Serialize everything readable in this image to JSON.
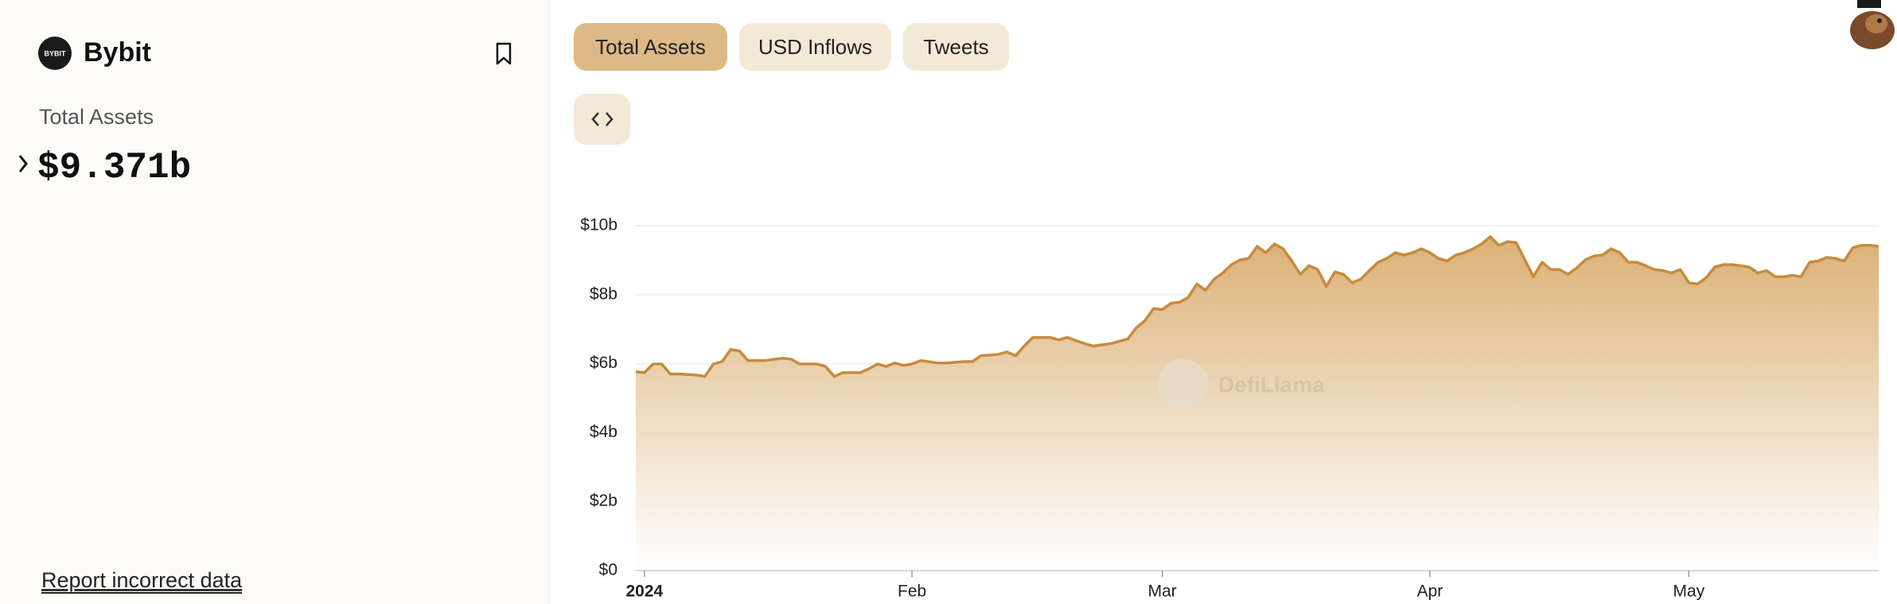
{
  "header": {
    "logo_text": "BYBIT",
    "name": "Bybit",
    "metric": "Total Assets",
    "value": "$9.371b",
    "report": "Report incorrect data"
  },
  "tabs": [
    "Total Assets",
    "USD Inflows",
    "Tweets"
  ],
  "chart_data": {
    "type": "area",
    "color": "#c78b3c",
    "grid": true,
    "watermark": "DefiLlama",
    "x": [
      -1,
      0,
      1,
      2,
      3,
      4,
      6,
      7,
      8,
      9,
      10,
      11,
      12,
      14,
      16,
      17,
      18,
      20,
      21,
      22,
      23,
      25,
      26,
      27,
      28,
      29,
      30,
      31,
      32,
      34,
      35,
      37,
      38,
      39,
      41,
      42,
      43,
      44,
      45,
      47,
      48,
      49,
      51,
      52,
      54,
      55,
      56,
      57,
      58,
      59,
      60,
      61,
      62,
      63,
      64,
      65,
      66,
      67,
      68,
      69,
      70,
      71,
      72,
      73,
      74,
      75,
      76,
      77,
      78,
      79,
      80,
      81,
      82,
      83,
      84,
      85,
      86,
      87,
      88,
      89,
      90,
      91,
      92,
      93,
      94,
      95,
      96,
      97,
      98,
      99,
      100,
      101,
      102,
      103,
      104,
      105,
      106,
      107,
      108,
      109,
      110,
      111,
      112,
      113,
      114,
      115,
      116,
      117,
      118,
      119,
      120,
      121,
      122,
      123,
      124,
      125,
      126,
      127,
      128,
      129,
      130,
      131,
      132,
      133,
      134,
      135,
      136,
      137,
      138,
      139,
      140,
      141,
      142,
      143
    ],
    "values": [
      5.77,
      5.74,
      5.99,
      5.99,
      5.7,
      5.7,
      5.67,
      5.63,
      5.99,
      6.06,
      6.41,
      6.37,
      6.09,
      6.09,
      6.16,
      6.13,
      5.99,
      5.99,
      5.92,
      5.63,
      5.74,
      5.74,
      5.85,
      5.99,
      5.92,
      6.02,
      5.95,
      5.99,
      6.09,
      6.02,
      6.02,
      6.06,
      6.06,
      6.23,
      6.27,
      6.34,
      6.23,
      6.51,
      6.76,
      6.76,
      6.69,
      6.76,
      6.58,
      6.51,
      6.58,
      6.65,
      6.72,
      7.04,
      7.25,
      7.6,
      7.57,
      7.75,
      7.78,
      7.92,
      8.31,
      8.13,
      8.45,
      8.63,
      8.87,
      9.01,
      9.05,
      9.4,
      9.22,
      9.47,
      9.33,
      8.98,
      8.59,
      8.84,
      8.73,
      8.24,
      8.66,
      8.59,
      8.35,
      8.45,
      8.7,
      8.94,
      9.05,
      9.22,
      9.15,
      9.22,
      9.33,
      9.22,
      9.05,
      8.98,
      9.15,
      9.22,
      9.33,
      9.47,
      9.68,
      9.43,
      9.54,
      9.51,
      9.01,
      8.52,
      8.94,
      8.73,
      8.73,
      8.59,
      8.77,
      9.01,
      9.12,
      9.15,
      9.33,
      9.22,
      8.94,
      8.94,
      8.84,
      8.73,
      8.7,
      8.63,
      8.73,
      8.35,
      8.31,
      8.49,
      8.8,
      8.87,
      8.87,
      8.84,
      8.8,
      8.63,
      8.7,
      8.52,
      8.52,
      8.56,
      8.52,
      8.94,
      8.98,
      9.08,
      9.05,
      8.98,
      9.36,
      9.43,
      9.43,
      9.4
    ],
    "xlim": [
      -1,
      143
    ],
    "xticks": [
      {
        "value": 0,
        "label": "2024"
      },
      {
        "value": 31,
        "label": "Feb"
      },
      {
        "value": 60,
        "label": "Mar"
      },
      {
        "value": 91,
        "label": "Apr"
      },
      {
        "value": 121,
        "label": "May"
      }
    ],
    "ylim": [
      0,
      10
    ],
    "yticks": [
      {
        "value": 0,
        "label": "$0"
      },
      {
        "value": 2,
        "label": "$2b"
      },
      {
        "value": 4,
        "label": "$4b"
      },
      {
        "value": 6,
        "label": "$6b"
      },
      {
        "value": 8,
        "label": "$8b"
      },
      {
        "value": 10,
        "label": "$10b"
      }
    ]
  }
}
